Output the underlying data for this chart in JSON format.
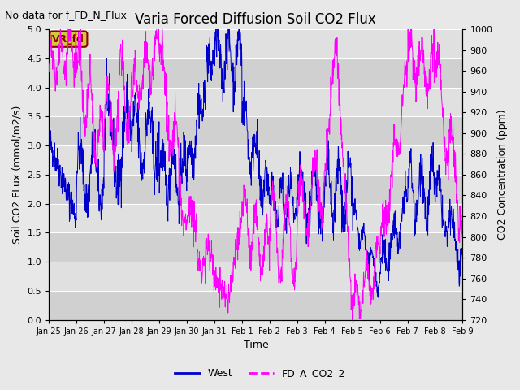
{
  "title": "Varia Forced Diffusion Soil CO2 Flux",
  "no_data_text": "No data for f_FD_N_Flux",
  "vr_fd_label": "VR_fd",
  "xlabel": "Time",
  "ylabel_left": "Soil CO2 FLux (mmol/m2/s)",
  "ylabel_right": "CO2 Concentration (ppm)",
  "ylim_left": [
    0.0,
    5.0
  ],
  "ylim_right": [
    720,
    1000
  ],
  "yticks_left": [
    0.0,
    0.5,
    1.0,
    1.5,
    2.0,
    2.5,
    3.0,
    3.5,
    4.0,
    4.5,
    5.0
  ],
  "yticks_right": [
    720,
    740,
    760,
    780,
    800,
    820,
    840,
    860,
    880,
    900,
    920,
    940,
    960,
    980,
    1000
  ],
  "xtick_labels": [
    "Jan 25",
    "Jan 26",
    "Jan 27",
    "Jan 28",
    "Jan 29",
    "Jan 30",
    "Jan 31",
    "Feb 1",
    "Feb 2",
    "Feb 3",
    "Feb 4",
    "Feb 5",
    "Feb 6",
    "Feb 7",
    "Feb 8",
    "Feb 9"
  ],
  "blue_color": "#0000cc",
  "magenta_color": "#ff00ff",
  "fig_bg_color": "#e8e8e8",
  "plot_bg_light": "#e8e8e8",
  "plot_bg_dark": "#d8d8d8",
  "legend_entries": [
    "West",
    "FD_A_CO2_2"
  ],
  "title_fontsize": 12,
  "label_fontsize": 9,
  "tick_fontsize": 8,
  "nodata_fontsize": 9
}
